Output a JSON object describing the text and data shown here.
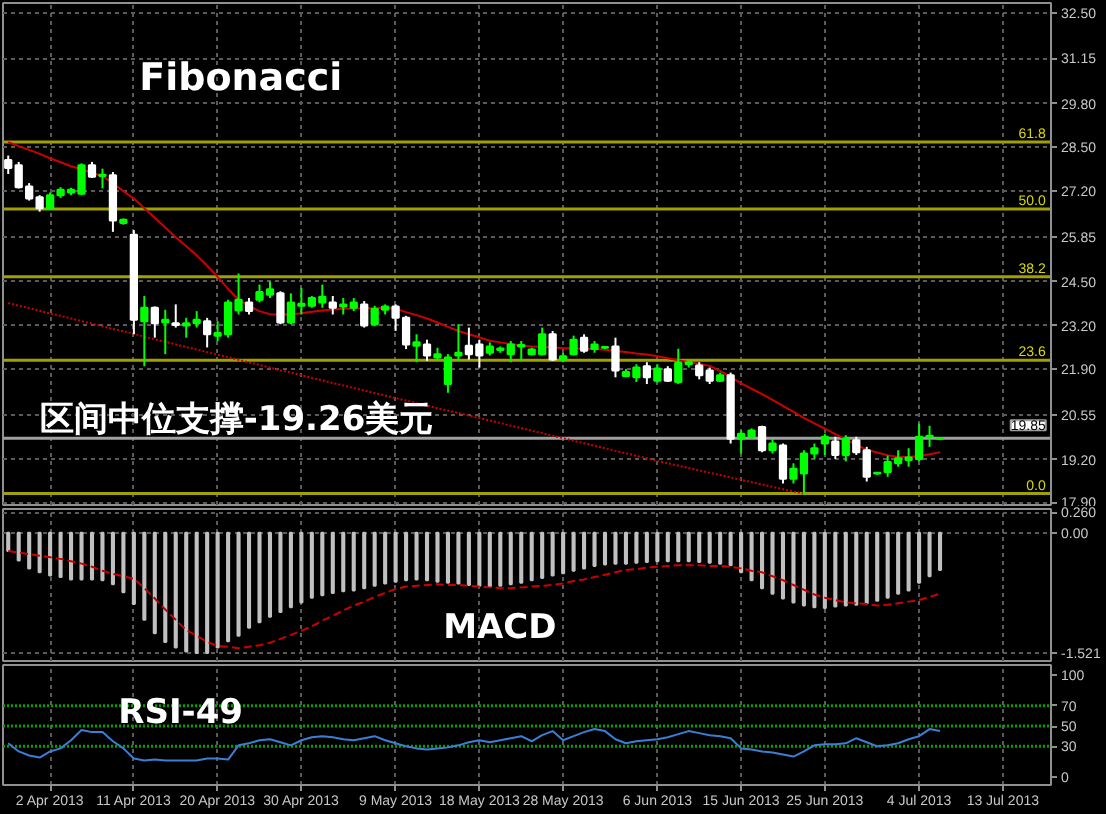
{
  "chart_data": [
    {
      "type": "candlestick",
      "annotations": [
        "Fibonacci",
        "区间中位支撑-19.26美元",
        {
          "text": "61.8",
          "y": 28.66
        },
        {
          "text": "50.0",
          "y": 26.67
        },
        {
          "text": "38.2",
          "y": 24.65
        },
        {
          "text": "23.6",
          "y": 22.17
        },
        {
          "text": "0.0",
          "y": 18.2
        }
      ],
      "categories": [
        null,
        null,
        null,
        null,
        null,
        null,
        null,
        null,
        null,
        null,
        null,
        null,
        null,
        null,
        null,
        null,
        null,
        null,
        null,
        null,
        null,
        null,
        null,
        null,
        null,
        null,
        null,
        null,
        null,
        null,
        null,
        null,
        null,
        null,
        null,
        null,
        null,
        null,
        null,
        null,
        null,
        null,
        null,
        null,
        null,
        null,
        null,
        null,
        null,
        null,
        null,
        null,
        null,
        null,
        null,
        null,
        null,
        null,
        null,
        null,
        null,
        null,
        null,
        null,
        null,
        null,
        null,
        null,
        null,
        null,
        null,
        null,
        null,
        null,
        null,
        null,
        null,
        null,
        null,
        null,
        null,
        null,
        null,
        null,
        null,
        null,
        null,
        null,
        null,
        null,
        null,
        null,
        null,
        null,
        null,
        null,
        null,
        null,
        null,
        null
      ],
      "ylim": [
        17.86,
        32.8
      ],
      "yticks": [
        {
          "value": 17.9,
          "label": "17.90"
        },
        {
          "value": 19.2,
          "label": "19.20"
        },
        {
          "value": 20.55,
          "label": "20.55"
        },
        {
          "value": 21.9,
          "label": "21.90"
        },
        {
          "value": 23.2,
          "label": "23.20"
        },
        {
          "value": 24.5,
          "label": "24.50"
        },
        {
          "value": 25.85,
          "label": "25.85"
        },
        {
          "value": 27.2,
          "label": "27.20"
        },
        {
          "value": 28.5,
          "label": "28.50"
        },
        {
          "value": 29.8,
          "label": "29.80"
        },
        {
          "value": 31.15,
          "label": "31.15"
        },
        {
          "value": 32.5,
          "label": "32.50"
        }
      ],
      "tick_labels": "y",
      "grid": true,
      "ref_lines": [
        {
          "axis": "y",
          "value": 28.66,
          "color": "#a0a000"
        },
        {
          "axis": "y",
          "value": 26.67,
          "color": "#a0a000"
        },
        {
          "axis": "y",
          "value": 24.65,
          "color": "#a0a000"
        },
        {
          "axis": "y",
          "value": 22.17,
          "color": "#a0a000"
        },
        {
          "axis": "y",
          "value": 18.2,
          "color": "#a0a000"
        },
        {
          "axis": "y",
          "value": 19.85,
          "label": "19.85",
          "color": "#a0a0a0"
        }
      ],
      "series": [
        {
          "ohlc": [
            [
              28.13,
              28.26,
              27.71,
              27.89
            ],
            [
              27.97,
              28.07,
              27.28,
              27.32
            ],
            [
              27.34,
              27.44,
              26.92,
              26.98
            ],
            [
              27.02,
              27.08,
              26.59,
              26.69
            ],
            [
              26.69,
              27.16,
              26.65,
              27.08
            ],
            [
              27.08,
              27.32,
              27.0,
              27.24
            ],
            [
              27.16,
              27.3,
              27.08,
              27.24
            ],
            [
              27.12,
              28.03,
              27.08,
              27.97
            ],
            [
              27.97,
              28.07,
              27.59,
              27.63
            ],
            [
              27.65,
              27.87,
              27.28,
              27.69
            ],
            [
              27.67,
              27.77,
              25.99,
              26.33
            ],
            [
              26.25,
              26.39,
              26.2,
              26.35
            ],
            [
              25.9,
              26.04,
              22.94,
              23.37
            ],
            [
              23.33,
              24.08,
              21.99,
              23.73
            ],
            [
              23.73,
              23.77,
              22.84,
              23.27
            ],
            [
              23.29,
              23.67,
              22.35,
              23.37
            ],
            [
              23.27,
              23.83,
              23.14,
              23.22
            ],
            [
              23.2,
              23.43,
              22.84,
              23.27
            ],
            [
              23.27,
              23.63,
              23.14,
              23.37
            ],
            [
              23.33,
              23.43,
              22.55,
              22.94
            ],
            [
              22.9,
              23.33,
              22.74,
              22.98
            ],
            [
              22.94,
              23.97,
              22.84,
              23.89
            ],
            [
              23.65,
              24.75,
              23.53,
              23.97
            ],
            [
              23.89,
              24.02,
              23.53,
              23.63
            ],
            [
              23.97,
              24.42,
              23.89,
              24.2
            ],
            [
              24.12,
              24.52,
              24.02,
              24.28
            ],
            [
              24.16,
              24.22,
              23.24,
              23.29
            ],
            [
              23.29,
              24.16,
              23.24,
              23.89
            ],
            [
              23.79,
              24.32,
              23.53,
              23.85
            ],
            [
              23.79,
              24.08,
              23.73,
              24.02
            ],
            [
              23.89,
              24.42,
              23.73,
              24.06
            ],
            [
              23.89,
              24.08,
              23.53,
              23.73
            ],
            [
              23.77,
              24.02,
              23.53,
              23.83
            ],
            [
              23.73,
              24.02,
              23.63,
              23.89
            ],
            [
              23.83,
              23.93,
              23.14,
              23.2
            ],
            [
              23.24,
              23.79,
              23.18,
              23.69
            ],
            [
              23.67,
              23.83,
              23.53,
              23.77
            ],
            [
              23.77,
              23.83,
              23.04,
              23.43
            ],
            [
              23.43,
              23.49,
              22.5,
              22.64
            ],
            [
              22.6,
              22.94,
              22.11,
              22.7
            ],
            [
              22.64,
              22.78,
              22.15,
              22.31
            ],
            [
              22.25,
              22.54,
              22.19,
              22.35
            ],
            [
              21.46,
              22.35,
              21.2,
              22.25
            ],
            [
              22.31,
              23.24,
              22.15,
              22.39
            ],
            [
              22.6,
              23.14,
              22.19,
              22.35
            ],
            [
              22.64,
              22.78,
              21.95,
              22.31
            ],
            [
              22.39,
              22.7,
              22.31,
              22.58
            ],
            [
              22.47,
              22.58,
              22.39,
              22.52
            ],
            [
              22.35,
              22.74,
              22.11,
              22.64
            ],
            [
              22.58,
              22.74,
              22.15,
              22.62
            ],
            [
              22.35,
              22.54,
              22.31,
              22.49
            ],
            [
              22.35,
              23.14,
              22.31,
              22.94
            ],
            [
              22.94,
              23.04,
              22.15,
              22.19
            ],
            [
              22.19,
              22.39,
              22.11,
              22.29
            ],
            [
              22.35,
              22.9,
              22.31,
              22.78
            ],
            [
              22.84,
              22.94,
              22.39,
              22.45
            ],
            [
              22.5,
              22.74,
              22.39,
              22.64
            ],
            [
              22.54,
              22.58,
              22.5,
              22.56
            ],
            [
              22.58,
              22.84,
              21.66,
              21.86
            ],
            [
              21.7,
              21.91,
              21.66,
              21.82
            ],
            [
              21.66,
              22.05,
              21.52,
              21.95
            ],
            [
              21.99,
              22.11,
              21.46,
              21.66
            ],
            [
              21.56,
              22.05,
              21.5,
              21.92
            ],
            [
              21.9,
              21.99,
              21.52,
              21.56
            ],
            [
              21.52,
              22.51,
              21.46,
              22.09
            ],
            [
              22.05,
              22.15,
              21.95,
              22.11
            ],
            [
              22.01,
              22.11,
              21.6,
              21.72
            ],
            [
              21.86,
              21.95,
              21.46,
              21.56
            ],
            [
              21.56,
              21.8,
              21.52,
              21.72
            ],
            [
              21.72,
              21.8,
              19.69,
              19.83
            ],
            [
              19.83,
              20.08,
              19.39,
              19.98
            ],
            [
              19.89,
              20.14,
              19.83,
              20.08
            ],
            [
              20.18,
              20.22,
              19.43,
              19.49
            ],
            [
              19.49,
              19.83,
              19.39,
              19.69
            ],
            [
              19.63,
              19.69,
              18.5,
              18.64
            ],
            [
              18.64,
              19.1,
              18.5,
              18.94
            ],
            [
              18.8,
              19.49,
              18.17,
              19.39
            ],
            [
              19.39,
              19.69,
              19.23,
              19.55
            ],
            [
              19.69,
              19.98,
              19.35,
              19.89
            ],
            [
              19.75,
              19.89,
              19.23,
              19.35
            ],
            [
              19.35,
              19.94,
              19.16,
              19.83
            ],
            [
              19.79,
              19.89,
              19.35,
              19.43
            ],
            [
              19.49,
              19.59,
              18.56,
              18.7
            ],
            [
              18.8,
              18.84,
              18.76,
              18.82
            ],
            [
              18.84,
              19.33,
              18.7,
              19.14
            ],
            [
              19.1,
              19.49,
              19.0,
              19.25
            ],
            [
              19.2,
              19.55,
              19.0,
              19.27
            ],
            [
              19.23,
              20.28,
              19.16,
              19.89
            ],
            [
              19.89,
              20.22,
              19.59,
              19.92
            ],
            [
              19.83,
              19.87,
              19.79,
              19.85
            ],
            null,
            null,
            null,
            null,
            null,
            null,
            null,
            null,
            null,
            null
          ],
          "colors": [
            "#ffffff",
            "#ffffff",
            "#ffffff",
            "#ffffff",
            "#00ff00",
            "#00ff00",
            "#00ff00",
            "#00ff00",
            "#ffffff",
            "#00ff00",
            "#ffffff",
            "#00ff00",
            "#ffffff",
            "#00ff00",
            "#ffffff",
            "#00ff00",
            "#ffffff",
            "#00ff00",
            "#00ff00",
            "#ffffff",
            "#00ff00",
            "#00ff00",
            "#00ff00",
            "#ffffff",
            "#00ff00",
            "#00ff00",
            "#ffffff",
            "#00ff00",
            "#00ff00",
            "#00ff00",
            "#00ff00",
            "#ffffff",
            "#00ff00",
            "#00ff00",
            "#ffffff",
            "#00ff00",
            "#00ff00",
            "#ffffff",
            "#ffffff",
            "#00ff00",
            "#ffffff",
            "#00ff00",
            "#00ff00",
            "#00ff00",
            "#ffffff",
            "#ffffff",
            "#00ff00",
            "#00ff00",
            "#00ff00",
            "#00ff00",
            "#00ff00",
            "#00ff00",
            "#ffffff",
            "#00ff00",
            "#00ff00",
            "#ffffff",
            "#00ff00",
            "#00ff00",
            "#ffffff",
            "#00ff00",
            "#00ff00",
            "#ffffff",
            "#00ff00",
            "#ffffff",
            "#00ff00",
            "#00ff00",
            "#ffffff",
            "#ffffff",
            "#00ff00",
            "#ffffff",
            "#00ff00",
            "#00ff00",
            "#ffffff",
            "#00ff00",
            "#ffffff",
            "#00ff00",
            "#00ff00",
            "#00ff00",
            "#00ff00",
            "#ffffff",
            "#00ff00",
            "#ffffff",
            "#ffffff",
            "#00ff00",
            "#00ff00",
            "#00ff00",
            "#00ff00",
            "#00ff00",
            "#00ff00",
            "#00ff00",
            null,
            null,
            null,
            null,
            null,
            null,
            null,
            null,
            null,
            null
          ]
        },
        {
          "type": "line",
          "color": "#cc0000",
          "line_style": "solid",
          "values": [
            28.66,
            28.54,
            28.43,
            28.31,
            28.18,
            28.06,
            27.94,
            27.85,
            27.75,
            27.65,
            27.43,
            27.2,
            26.98,
            26.69,
            26.41,
            26.12,
            25.83,
            25.56,
            25.29,
            24.98,
            24.65,
            24.29,
            23.97,
            23.78,
            23.63,
            23.54,
            23.53,
            23.53,
            23.57,
            23.61,
            23.65,
            23.68,
            23.7,
            23.71,
            23.71,
            23.72,
            23.73,
            23.7,
            23.6,
            23.51,
            23.41,
            23.29,
            23.16,
            23.04,
            22.94,
            22.85,
            22.75,
            22.7,
            22.65,
            22.61,
            22.58,
            22.57,
            22.55,
            22.53,
            22.52,
            22.51,
            22.5,
            22.48,
            22.44,
            22.41,
            22.37,
            22.34,
            22.29,
            22.23,
            22.17,
            22.11,
            22.06,
            22.0,
            21.85,
            21.67,
            21.48,
            21.32,
            21.16,
            20.99,
            20.81,
            20.63,
            20.45,
            20.29,
            20.13,
            19.97,
            19.81,
            19.66,
            19.5,
            19.42,
            19.34,
            19.29,
            19.29,
            19.32,
            19.37,
            19.43,
            null,
            null,
            null,
            null,
            null,
            null,
            null,
            null,
            null,
            null
          ]
        },
        {
          "type": "line",
          "color": "#cc0000",
          "line_style": "dotted",
          "values": [
            23.87,
            23.79,
            23.72,
            23.64,
            23.56,
            23.49,
            23.41,
            23.33,
            23.26,
            23.18,
            23.1,
            23.03,
            22.95,
            22.87,
            22.79,
            22.72,
            22.64,
            22.56,
            22.49,
            22.41,
            22.33,
            22.26,
            22.18,
            22.1,
            22.03,
            21.95,
            21.87,
            21.8,
            21.72,
            21.64,
            21.57,
            21.49,
            21.42,
            21.34,
            21.27,
            21.19,
            21.12,
            21.04,
            20.97,
            20.89,
            20.82,
            20.74,
            20.67,
            20.6,
            20.52,
            20.45,
            20.37,
            20.3,
            20.22,
            20.15,
            20.07,
            20.0,
            19.92,
            19.85,
            19.77,
            19.7,
            19.62,
            19.55,
            19.47,
            19.4,
            19.32,
            19.25,
            19.17,
            19.1,
            19.03,
            18.96,
            18.89,
            18.82,
            18.75,
            18.68,
            18.61,
            18.54,
            18.47,
            18.4,
            18.33,
            18.26,
            18.2,
            null,
            null,
            null,
            null,
            null,
            null,
            null,
            null,
            null,
            null,
            null,
            null,
            null,
            null,
            null,
            null,
            null,
            null,
            null,
            null,
            null,
            null,
            null
          ]
        }
      ]
    },
    {
      "type": "bar",
      "annotations": [
        "MACD"
      ],
      "categories": [
        null,
        null,
        null,
        null,
        null,
        null,
        null,
        null,
        null,
        null,
        null,
        null,
        null,
        null,
        null,
        null,
        null,
        null,
        null,
        null,
        null,
        null,
        null,
        null,
        null,
        null,
        null,
        null,
        null,
        null,
        null,
        null,
        null,
        null,
        null,
        null,
        null,
        null,
        null,
        null,
        null,
        null,
        null,
        null,
        null,
        null,
        null,
        null,
        null,
        null,
        null,
        null,
        null,
        null,
        null,
        null,
        null,
        null,
        null,
        null,
        null,
        null,
        null,
        null,
        null,
        null,
        null,
        null,
        null,
        null,
        null,
        null,
        null,
        null,
        null,
        null,
        null,
        null,
        null,
        null,
        null,
        null,
        null,
        null,
        null,
        null,
        null,
        null,
        null,
        null,
        null,
        null,
        null,
        null,
        null,
        null,
        null,
        null,
        null,
        null
      ],
      "ylim": [
        -1.62,
        0.3
      ],
      "yticks": [
        {
          "value": 0.26,
          "label": "0.260"
        },
        {
          "value": 0,
          "label": "0.00"
        },
        -1.521
      ],
      "tick_labels": "y",
      "grid": true,
      "series": [
        {
          "color": "#c0c0c0",
          "values": [
            -0.23,
            -0.35,
            -0.45,
            -0.5,
            -0.54,
            -0.56,
            -0.59,
            -0.59,
            -0.59,
            -0.6,
            -0.65,
            -0.75,
            -0.9,
            -1.1,
            -1.27,
            -1.38,
            -1.45,
            -1.5,
            -1.52,
            -1.52,
            -1.45,
            -1.37,
            -1.3,
            -1.2,
            -1.13,
            -1.06,
            -1.0,
            -0.94,
            -0.88,
            -0.82,
            -0.79,
            -0.76,
            -0.74,
            -0.73,
            -0.7,
            -0.67,
            -0.64,
            -0.62,
            -0.6,
            -0.59,
            -0.6,
            -0.62,
            -0.63,
            -0.64,
            -0.66,
            -0.67,
            -0.68,
            -0.67,
            -0.65,
            -0.63,
            -0.6,
            -0.57,
            -0.54,
            -0.51,
            -0.48,
            -0.45,
            -0.42,
            -0.4,
            -0.39,
            -0.39,
            -0.38,
            -0.37,
            -0.36,
            -0.36,
            -0.36,
            -0.36,
            -0.37,
            -0.38,
            -0.39,
            -0.41,
            -0.5,
            -0.6,
            -0.7,
            -0.77,
            -0.83,
            -0.88,
            -0.92,
            -0.94,
            -0.95,
            -0.93,
            -0.92,
            -0.91,
            -0.89,
            -0.86,
            -0.82,
            -0.77,
            -0.73,
            -0.63,
            -0.55,
            -0.47,
            null,
            null,
            null,
            null,
            null,
            null,
            null,
            null,
            null,
            null
          ]
        },
        {
          "type": "line",
          "color": "#cc0000",
          "line_style": "dashed",
          "values": [
            -0.23,
            -0.25,
            -0.27,
            -0.29,
            -0.31,
            -0.33,
            -0.36,
            -0.39,
            -0.43,
            -0.48,
            -0.52,
            -0.55,
            -0.58,
            -0.7,
            -0.83,
            -0.97,
            -1.1,
            -1.23,
            -1.3,
            -1.38,
            -1.43,
            -1.44,
            -1.46,
            -1.44,
            -1.42,
            -1.39,
            -1.34,
            -1.29,
            -1.24,
            -1.18,
            -1.11,
            -1.05,
            -0.98,
            -0.92,
            -0.87,
            -0.81,
            -0.76,
            -0.71,
            -0.68,
            -0.67,
            -0.66,
            -0.65,
            -0.66,
            -0.66,
            -0.67,
            -0.68,
            -0.69,
            -0.7,
            -0.7,
            -0.69,
            -0.68,
            -0.67,
            -0.66,
            -0.64,
            -0.61,
            -0.59,
            -0.56,
            -0.53,
            -0.5,
            -0.47,
            -0.46,
            -0.44,
            -0.43,
            -0.42,
            -0.41,
            -0.41,
            -0.41,
            -0.42,
            -0.42,
            -0.43,
            -0.45,
            -0.48,
            -0.5,
            -0.55,
            -0.6,
            -0.66,
            -0.72,
            -0.78,
            -0.82,
            -0.85,
            -0.88,
            -0.89,
            -0.9,
            -0.92,
            -0.91,
            -0.89,
            -0.87,
            -0.85,
            -0.81,
            -0.77,
            null,
            null,
            null,
            null,
            null,
            null,
            null,
            null,
            null,
            null
          ]
        }
      ]
    },
    {
      "type": "line",
      "annotations": [
        "RSI-49"
      ],
      "categories": [
        null,
        null,
        null,
        null,
        "2 Apr 2013",
        null,
        null,
        null,
        null,
        null,
        null,
        null,
        "11 Apr 2013",
        null,
        null,
        null,
        null,
        null,
        null,
        null,
        "20 Apr 2013",
        null,
        null,
        null,
        null,
        null,
        null,
        null,
        "30 Apr 2013",
        null,
        null,
        null,
        null,
        null,
        null,
        null,
        null,
        "9 May 2013",
        null,
        null,
        null,
        null,
        null,
        null,
        null,
        "18 May 2013",
        null,
        null,
        null,
        null,
        null,
        null,
        null,
        "28 May 2013",
        null,
        null,
        null,
        null,
        null,
        null,
        null,
        null,
        "6 Jun 2013",
        null,
        null,
        null,
        null,
        null,
        null,
        null,
        "15 Jun 2013",
        null,
        null,
        null,
        null,
        null,
        null,
        null,
        "25 Jun 2013",
        null,
        null,
        null,
        null,
        null,
        null,
        null,
        null,
        "4 Jul 2013",
        null,
        null,
        null,
        null,
        null,
        null,
        null,
        "13 Jul 2013",
        null,
        null,
        null,
        null
      ],
      "ylim": [
        -8,
        110
      ],
      "yticks": [
        0,
        30,
        50,
        70,
        100
      ],
      "grid": "x",
      "ref_lines": [
        {
          "axis": "y",
          "value": 70,
          "color": "#00a000",
          "line_style": "dotted"
        },
        {
          "axis": "y",
          "value": 50,
          "color": "#00a000",
          "line_style": "dotted"
        },
        {
          "axis": "y",
          "value": 30,
          "color": "#00a000",
          "line_style": "dotted"
        }
      ],
      "series": [
        {
          "color": "#3a7fd5",
          "values": [
            33,
            25,
            21,
            19,
            25,
            28,
            36,
            46,
            44,
            44,
            35,
            28,
            18,
            16,
            17,
            16,
            16,
            16,
            16,
            18,
            18,
            17,
            31,
            33,
            36,
            37,
            34,
            31,
            36,
            39,
            40,
            39,
            37,
            36,
            38,
            40,
            36,
            33,
            30,
            28,
            27,
            28,
            29,
            31,
            34,
            36,
            34,
            36,
            38,
            40,
            35,
            41,
            45,
            36,
            40,
            44,
            47,
            45,
            37,
            33,
            35,
            36,
            37,
            39,
            42,
            45,
            43,
            41,
            40,
            38,
            28,
            27,
            25,
            24,
            22,
            20,
            25,
            31,
            32,
            32,
            33,
            38,
            34,
            30,
            31,
            33,
            37,
            40,
            47,
            45,
            null,
            null,
            null,
            null,
            null,
            null,
            null,
            null,
            null,
            null
          ]
        }
      ]
    }
  ]
}
